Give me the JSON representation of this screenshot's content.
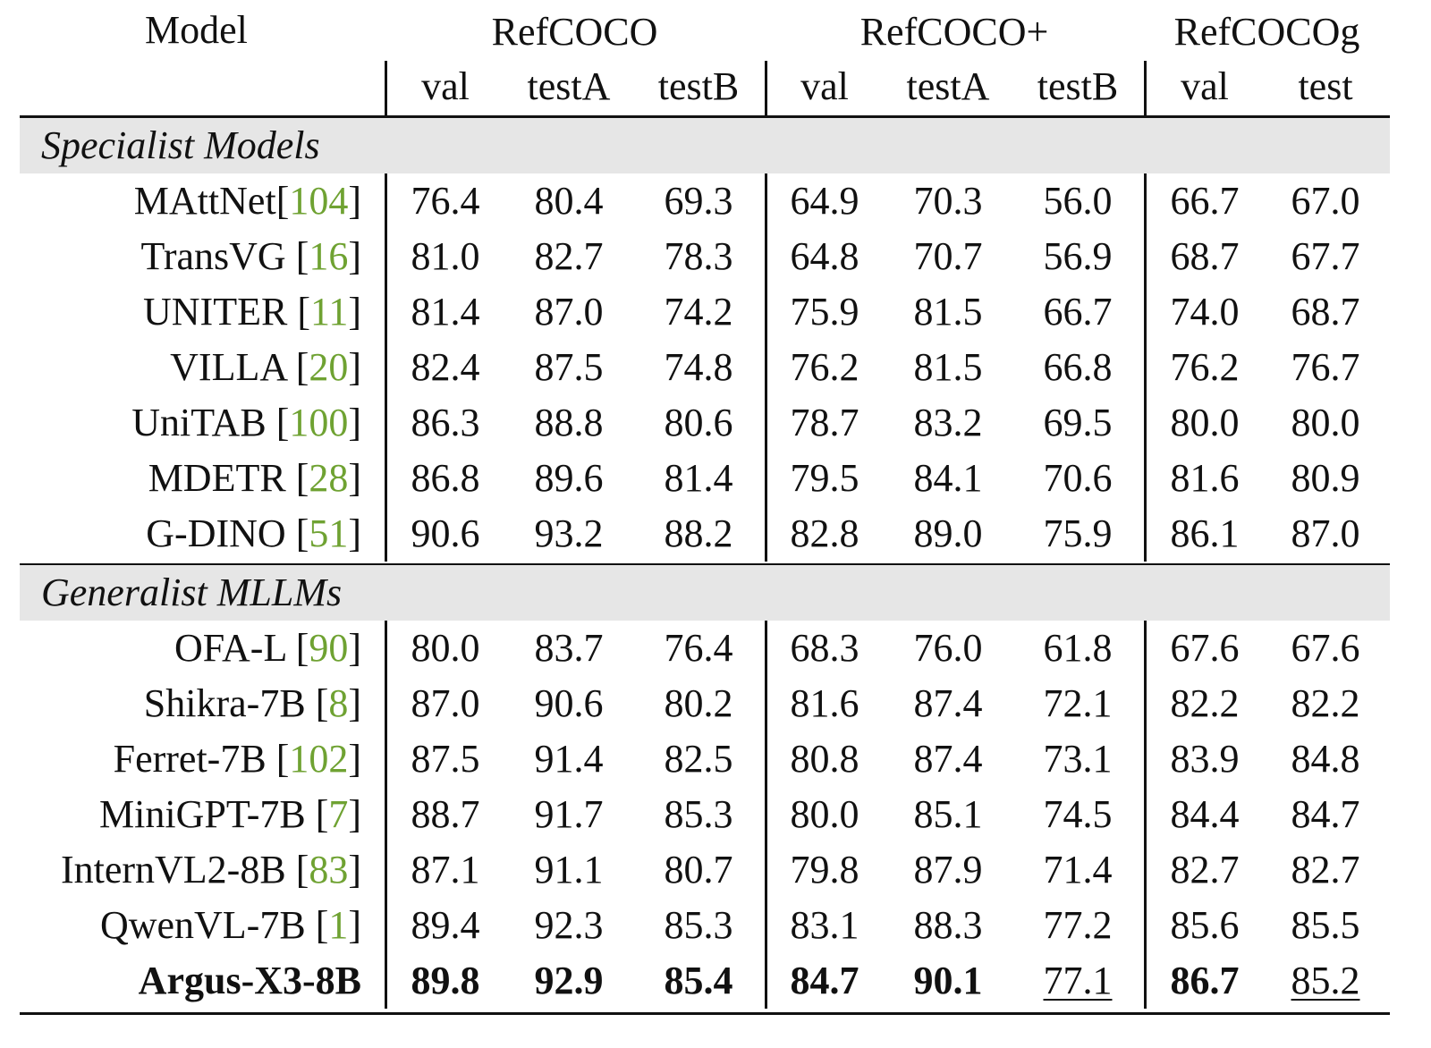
{
  "header": {
    "model_label": "Model",
    "groups": [
      "RefCOCO",
      "RefCOCO+",
      "RefCOCOg"
    ],
    "columns": [
      "val",
      "testA",
      "testB",
      "val",
      "testA",
      "testB",
      "val",
      "test"
    ]
  },
  "sections": [
    {
      "label": "Specialist Models",
      "rows": [
        {
          "name": "MAttNet",
          "cite": "[104]",
          "values": [
            "76.4",
            "80.4",
            "69.3",
            "64.9",
            "70.3",
            "56.0",
            "66.7",
            "67.0"
          ]
        },
        {
          "name": "TransVG ",
          "cite": "[16]",
          "values": [
            "81.0",
            "82.7",
            "78.3",
            "64.8",
            "70.7",
            "56.9",
            "68.7",
            "67.7"
          ]
        },
        {
          "name": "UNITER ",
          "cite": "[11]",
          "values": [
            "81.4",
            "87.0",
            "74.2",
            "75.9",
            "81.5",
            "66.7",
            "74.0",
            "68.7"
          ]
        },
        {
          "name": "VILLA ",
          "cite": "[20]",
          "values": [
            "82.4",
            "87.5",
            "74.8",
            "76.2",
            "81.5",
            "66.8",
            "76.2",
            "76.7"
          ]
        },
        {
          "name": "UniTAB ",
          "cite": "[100]",
          "values": [
            "86.3",
            "88.8",
            "80.6",
            "78.7",
            "83.2",
            "69.5",
            "80.0",
            "80.0"
          ]
        },
        {
          "name": "MDETR ",
          "cite": "[28]",
          "values": [
            "86.8",
            "89.6",
            "81.4",
            "79.5",
            "84.1",
            "70.6",
            "81.6",
            "80.9"
          ]
        },
        {
          "name": "G-DINO ",
          "cite": "[51]",
          "values": [
            "90.6",
            "93.2",
            "88.2",
            "82.8",
            "89.0",
            "75.9",
            "86.1",
            "87.0"
          ]
        }
      ]
    },
    {
      "label": "Generalist MLLMs",
      "rows": [
        {
          "name": "OFA-L ",
          "cite": "[90]",
          "values": [
            "80.0",
            "83.7",
            "76.4",
            "68.3",
            "76.0",
            "61.8",
            "67.6",
            "67.6"
          ]
        },
        {
          "name": "Shikra-7B ",
          "cite": "[8]",
          "values": [
            "87.0",
            "90.6",
            "80.2",
            "81.6",
            "87.4",
            "72.1",
            "82.2",
            "82.2"
          ]
        },
        {
          "name": "Ferret-7B ",
          "cite": "[102]",
          "values": [
            "87.5",
            "91.4",
            "82.5",
            "80.8",
            "87.4",
            "73.1",
            "83.9",
            "84.8"
          ]
        },
        {
          "name": "MiniGPT-7B ",
          "cite": "[7]",
          "values": [
            "88.7",
            "91.7",
            "85.3",
            "80.0",
            "85.1",
            "74.5",
            "84.4",
            "84.7"
          ]
        },
        {
          "name": "InternVL2-8B ",
          "cite": "[83]",
          "values": [
            "87.1",
            "91.1",
            "80.7",
            "79.8",
            "87.9",
            "71.4",
            "82.7",
            "82.7"
          ]
        },
        {
          "name": "QwenVL-7B ",
          "cite": "[1]",
          "values": [
            "89.4",
            "92.3",
            "85.3",
            "83.1",
            "88.3",
            "77.2",
            "85.6",
            "85.5"
          ]
        },
        {
          "name": "Argus-X3-8B",
          "cite": "",
          "bold_name": true,
          "values": [
            "89.8",
            "92.9",
            "85.4",
            "84.7",
            "90.1",
            "77.1",
            "86.7",
            "85.2"
          ],
          "bold": [
            true,
            true,
            true,
            true,
            true,
            false,
            true,
            false
          ],
          "underline": [
            false,
            false,
            false,
            false,
            false,
            true,
            false,
            true
          ]
        }
      ]
    }
  ]
}
